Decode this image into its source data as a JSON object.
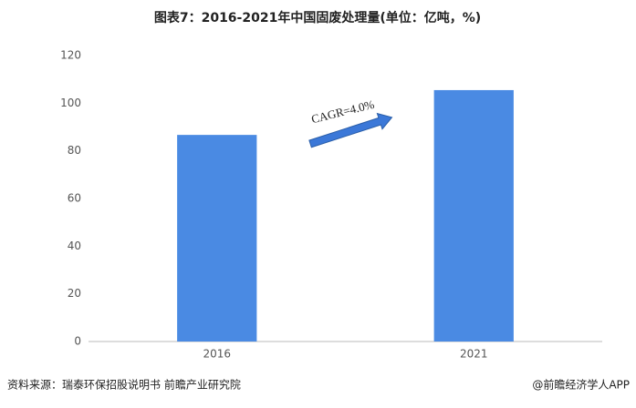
{
  "chart_data": {
    "type": "bar",
    "title": "图表7：2016-2021年中国固废处理量(单位：亿吨，%)",
    "categories": [
      "2016",
      "2021"
    ],
    "values": [
      86.7,
      105.5
    ],
    "color": "#4a8ae3",
    "ylim": [
      0,
      120
    ],
    "yticks": [
      0,
      20,
      40,
      60,
      80,
      100,
      120
    ],
    "grid": false,
    "annotation": "CAGR=4.0%",
    "source": "资料来源：瑞泰环保招股说明书 前瞻产业研究院",
    "credit": "@前瞻经济学人APP"
  }
}
